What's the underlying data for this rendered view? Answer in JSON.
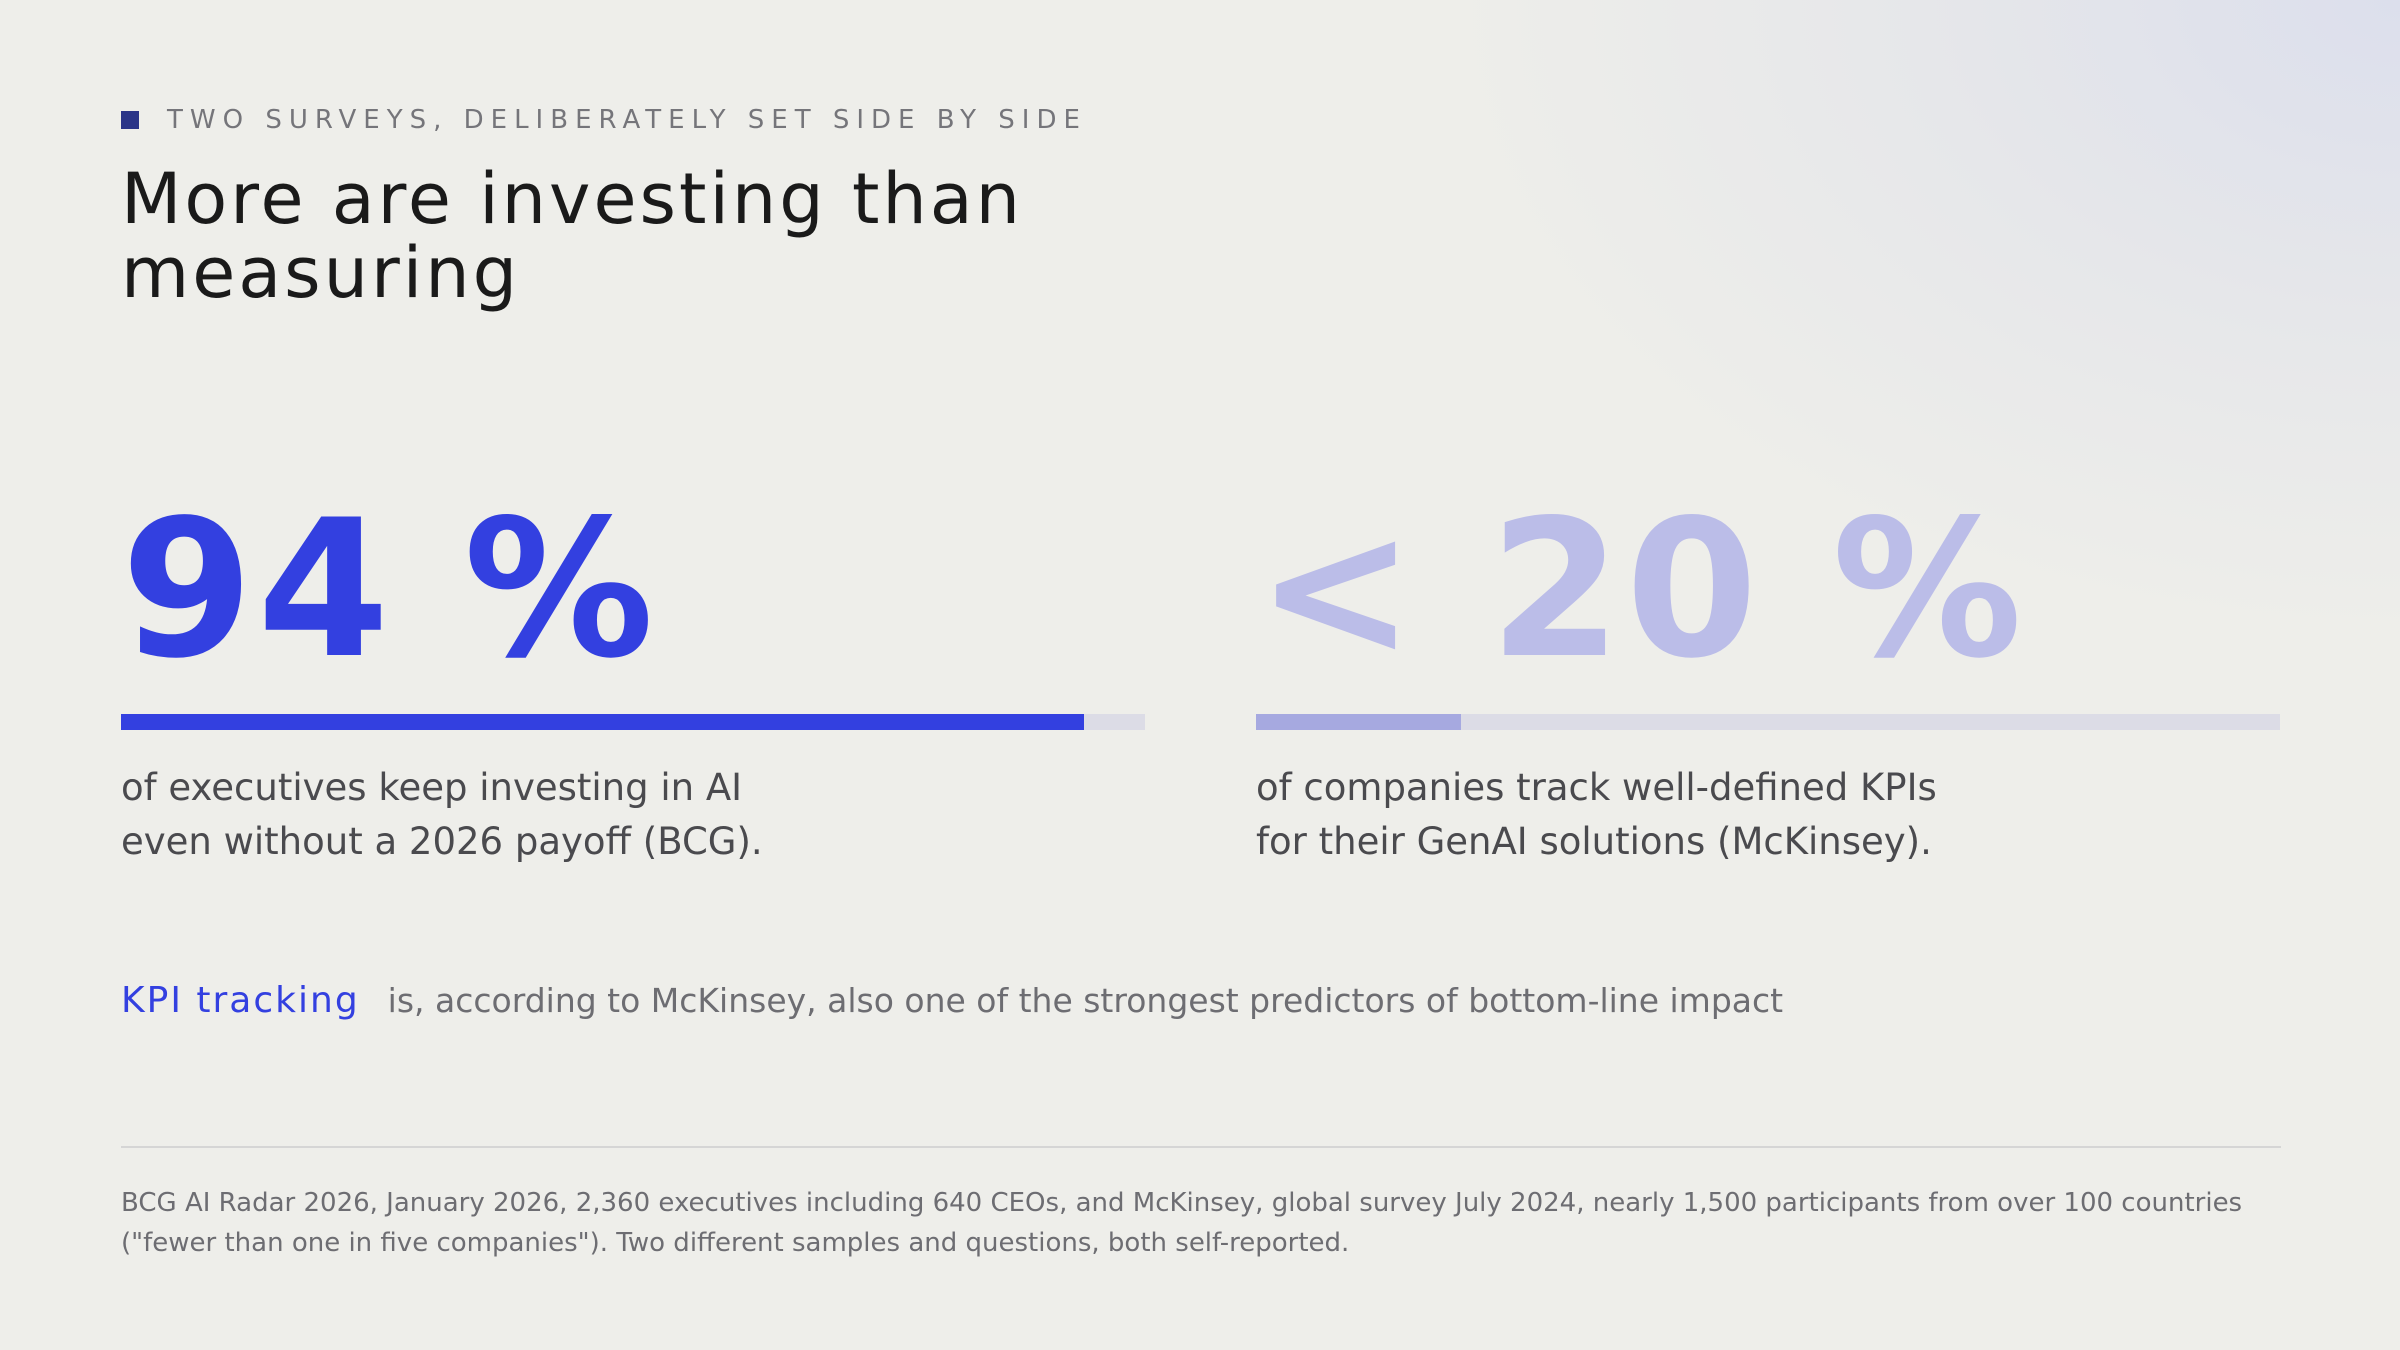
{
  "eyebrow": "TWO SURVEYS, DELIBERATELY SET SIDE BY SIDE",
  "title": "More are investing than measuring",
  "stats": [
    {
      "value": "94 %",
      "fraction": 0.94,
      "description": "of executives keep investing in AI even without a 2026 payoff (BCG).",
      "color": "#3340e0"
    },
    {
      "value": "< 20 %",
      "fraction": 0.2,
      "description": "of companies track well-defined KPIs for their GenAI solutions (McKinsey).",
      "color": "#bbbde8"
    }
  ],
  "note": {
    "key": "KPI tracking",
    "text": "is, according to McKinsey, also one of the strongest predictors of bottom-line impact"
  },
  "source": "BCG AI Radar 2026, January 2026, 2,360 executives including 640 CEOs, and McKinsey, global survey July 2024, nearly 1,500 participants from over 100 countries (\"fewer than one in five companies\"). Two different samples and questions, both self-reported.",
  "colors": {
    "accent": "#3340e0",
    "accent_muted": "#bbbde8",
    "marker": "#2a3488",
    "track": "#dcdce6"
  }
}
